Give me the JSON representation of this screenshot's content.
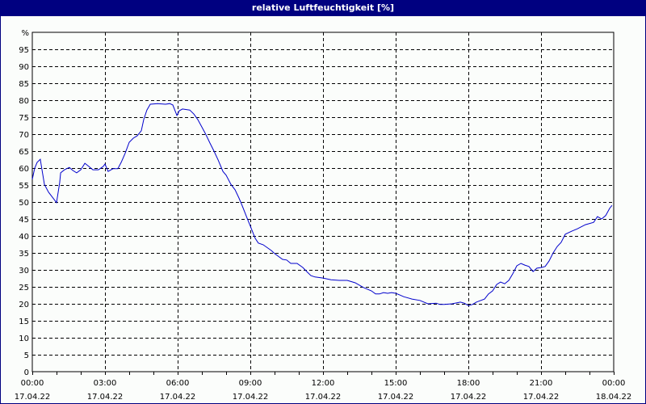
{
  "window": {
    "title": "relative Luftfeuchtigkeit [%]"
  },
  "colors": {
    "titlebar": "#000080",
    "line": "#0000cc",
    "background": "#fbfdfb",
    "grid": "#000000"
  },
  "chart_data": {
    "type": "line",
    "title": "relative Luftfeuchtigkeit [%]",
    "xlabel": "",
    "ylabel": "%",
    "ylim": [
      0,
      100
    ],
    "xlim_hours": [
      0,
      24
    ],
    "grid": true,
    "y_ticks": [
      "0",
      "5",
      "10",
      "15",
      "20",
      "25",
      "30",
      "35",
      "40",
      "45",
      "50",
      "55",
      "60",
      "65",
      "70",
      "75",
      "80",
      "85",
      "90",
      "95",
      "%"
    ],
    "x_ticks": [
      {
        "time": "00:00",
        "date": "17.04.22"
      },
      {
        "time": "03:00",
        "date": "17.04.22"
      },
      {
        "time": "06:00",
        "date": "17.04.22"
      },
      {
        "time": "09:00",
        "date": "17.04.22"
      },
      {
        "time": "12:00",
        "date": "17.04.22"
      },
      {
        "time": "15:00",
        "date": "17.04.22"
      },
      {
        "time": "18:00",
        "date": "17.04.22"
      },
      {
        "time": "21:00",
        "date": "17.04.22"
      },
      {
        "time": "00:00",
        "date": "18.04.22"
      }
    ],
    "series": [
      {
        "name": "relative Luftfeuchtigkeit",
        "x_hours": [
          0,
          0.1,
          0.2,
          0.33,
          0.4,
          0.5,
          0.67,
          0.83,
          1.0,
          1.13,
          1.17,
          1.33,
          1.53,
          1.67,
          1.83,
          2.0,
          2.17,
          2.33,
          2.5,
          2.73,
          2.93,
          3.0,
          3.13,
          3.33,
          3.53,
          3.67,
          3.83,
          4.0,
          4.17,
          4.33,
          4.5,
          4.6,
          4.73,
          4.87,
          5.17,
          5.5,
          5.67,
          5.8,
          5.97,
          6.07,
          6.2,
          6.5,
          6.67,
          6.83,
          7.0,
          7.17,
          7.33,
          7.5,
          7.67,
          7.87,
          8.0,
          8.2,
          8.37,
          8.53,
          8.67,
          8.87,
          9.0,
          9.2,
          9.33,
          9.53,
          9.87,
          10.0,
          10.33,
          10.5,
          10.67,
          10.93,
          11.17,
          11.33,
          11.5,
          11.67,
          12.0,
          12.33,
          12.67,
          13.0,
          13.33,
          13.67,
          14.0,
          14.17,
          14.33,
          14.5,
          14.67,
          14.83,
          15.0,
          15.17,
          15.33,
          15.67,
          16.0,
          16.33,
          16.67,
          16.83,
          17.0,
          17.33,
          17.67,
          17.83,
          18.0,
          18.17,
          18.33,
          18.67,
          18.83,
          19.0,
          19.17,
          19.33,
          19.5,
          19.67,
          19.83,
          20.0,
          20.17,
          20.33,
          20.5,
          20.67,
          20.83,
          21.0,
          21.17,
          21.33,
          21.5,
          21.67,
          21.83,
          22.0,
          22.27,
          22.5,
          22.83,
          23.17,
          23.33,
          23.5,
          23.67,
          23.83,
          23.93
        ],
        "values": [
          56.7,
          60.0,
          61.7,
          62.6,
          59.5,
          55.2,
          52.9,
          51.4,
          49.8,
          55.7,
          58.6,
          59.5,
          60.2,
          59.3,
          58.6,
          59.5,
          61.4,
          60.5,
          59.5,
          59.5,
          60.5,
          61.2,
          59.0,
          59.8,
          59.8,
          61.7,
          64.3,
          67.6,
          68.8,
          69.5,
          71.0,
          74.3,
          77.1,
          78.8,
          79.0,
          78.8,
          79.0,
          78.6,
          75.5,
          76.9,
          77.4,
          77.1,
          75.9,
          74.3,
          72.1,
          69.8,
          67.4,
          65.0,
          62.4,
          59.0,
          57.9,
          55.2,
          53.6,
          51.2,
          48.8,
          45.2,
          42.9,
          39.3,
          37.9,
          37.4,
          35.7,
          34.8,
          33.1,
          32.9,
          31.9,
          31.9,
          30.7,
          29.5,
          28.3,
          27.9,
          27.6,
          27.1,
          26.9,
          26.9,
          26.2,
          24.8,
          23.8,
          22.9,
          22.9,
          23.3,
          23.1,
          23.3,
          23.1,
          22.6,
          22.1,
          21.4,
          21.0,
          20.0,
          20.2,
          19.8,
          19.8,
          20.0,
          20.5,
          20.2,
          19.5,
          19.8,
          20.5,
          21.4,
          22.9,
          23.8,
          25.7,
          26.4,
          25.9,
          26.9,
          28.8,
          31.2,
          31.9,
          31.4,
          31.0,
          29.5,
          30.5,
          30.7,
          31.0,
          32.6,
          35.0,
          36.9,
          38.1,
          40.5,
          41.4,
          42.1,
          43.3,
          44.0,
          45.7,
          45.0,
          46.0,
          48.1,
          49.0
        ]
      }
    ]
  }
}
